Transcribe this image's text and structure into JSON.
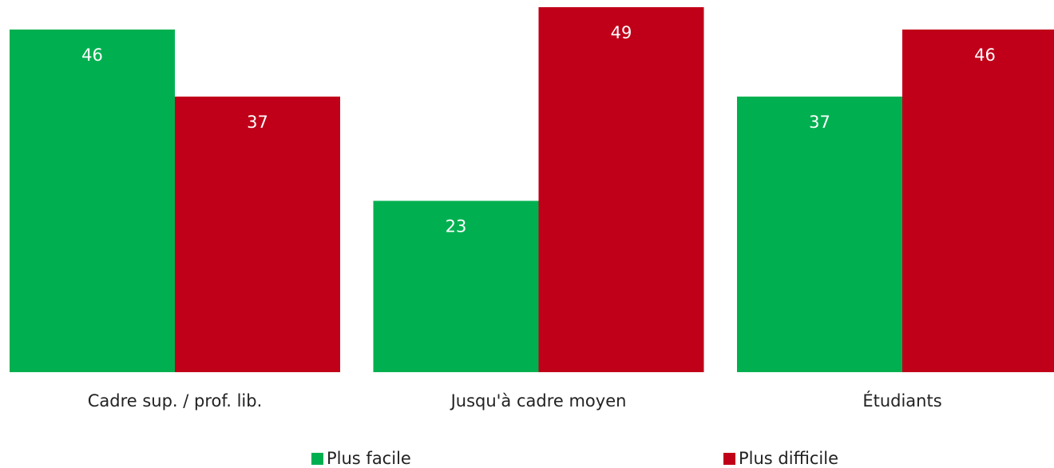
{
  "chart_data": {
    "type": "bar",
    "categories": [
      "Cadre sup. / prof. lib.",
      "Jusqu'à cadre moyen",
      "Étudiants"
    ],
    "series": [
      {
        "name": "Plus facile",
        "color": "#00b050",
        "values": [
          46,
          23,
          37
        ]
      },
      {
        "name": "Plus difficile",
        "color": "#c00018",
        "values": [
          37,
          49,
          46
        ]
      }
    ]
  }
}
